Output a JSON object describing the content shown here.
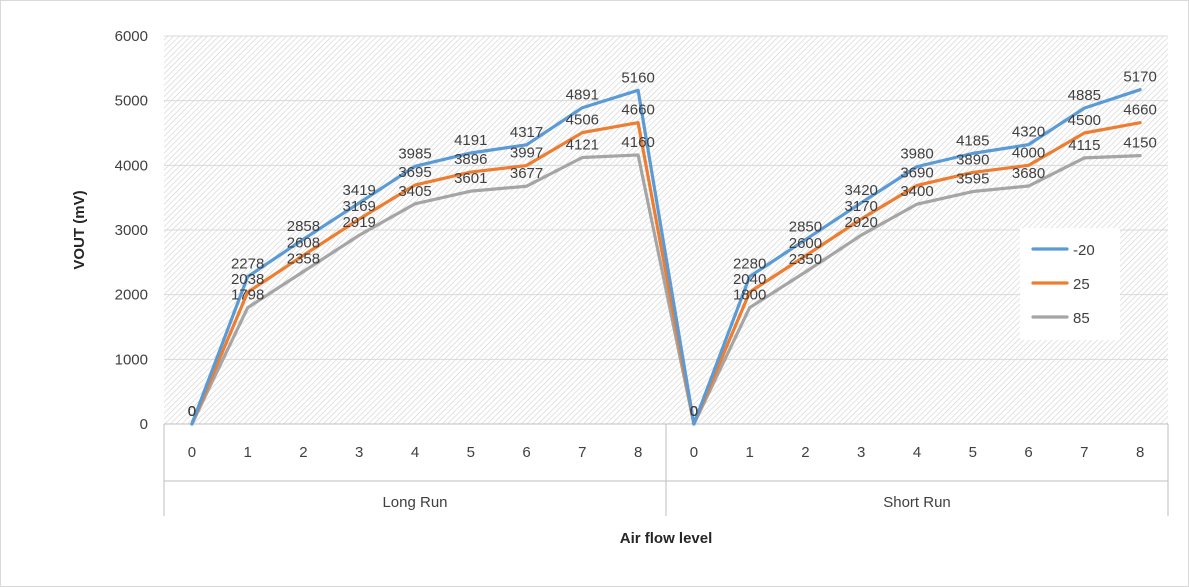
{
  "colors": {
    "series": [
      "#5B9BD5",
      "#ED7D31",
      "#A5A5A5"
    ],
    "grid": "#D9D9D9",
    "hatch": "#D0D0D0",
    "axis": "#BFBFBF",
    "text": "#404040"
  },
  "chart_data": {
    "type": "line",
    "title": "",
    "xlabel": "Air flow level",
    "ylabel": "VOUT (mV)",
    "ylim": [
      0,
      6000
    ],
    "yticks": [
      0,
      1000,
      2000,
      3000,
      4000,
      5000,
      6000
    ],
    "grid": true,
    "legend_position": "right",
    "groups": [
      {
        "label": "Long Run",
        "x": [
          "0",
          "1",
          "2",
          "3",
          "4",
          "5",
          "6",
          "7",
          "8"
        ]
      },
      {
        "label": "Short Run",
        "x": [
          "0",
          "1",
          "2",
          "3",
          "4",
          "5",
          "6",
          "7",
          "8"
        ]
      }
    ],
    "series": [
      {
        "name": "-20",
        "values": [
          0,
          2278,
          2858,
          3419,
          3985,
          4191,
          4317,
          4891,
          5160,
          0,
          2280,
          2850,
          3420,
          3980,
          4185,
          4320,
          4885,
          5170
        ]
      },
      {
        "name": "25",
        "values": [
          0,
          2038,
          2608,
          3169,
          3695,
          3896,
          3997,
          4506,
          4660,
          0,
          2040,
          2600,
          3170,
          3690,
          3890,
          4000,
          4500,
          4660
        ]
      },
      {
        "name": "85",
        "values": [
          0,
          1798,
          2358,
          2919,
          3405,
          3601,
          3677,
          4121,
          4160,
          0,
          1800,
          2350,
          2920,
          3400,
          3595,
          3680,
          4115,
          4150
        ]
      }
    ]
  }
}
